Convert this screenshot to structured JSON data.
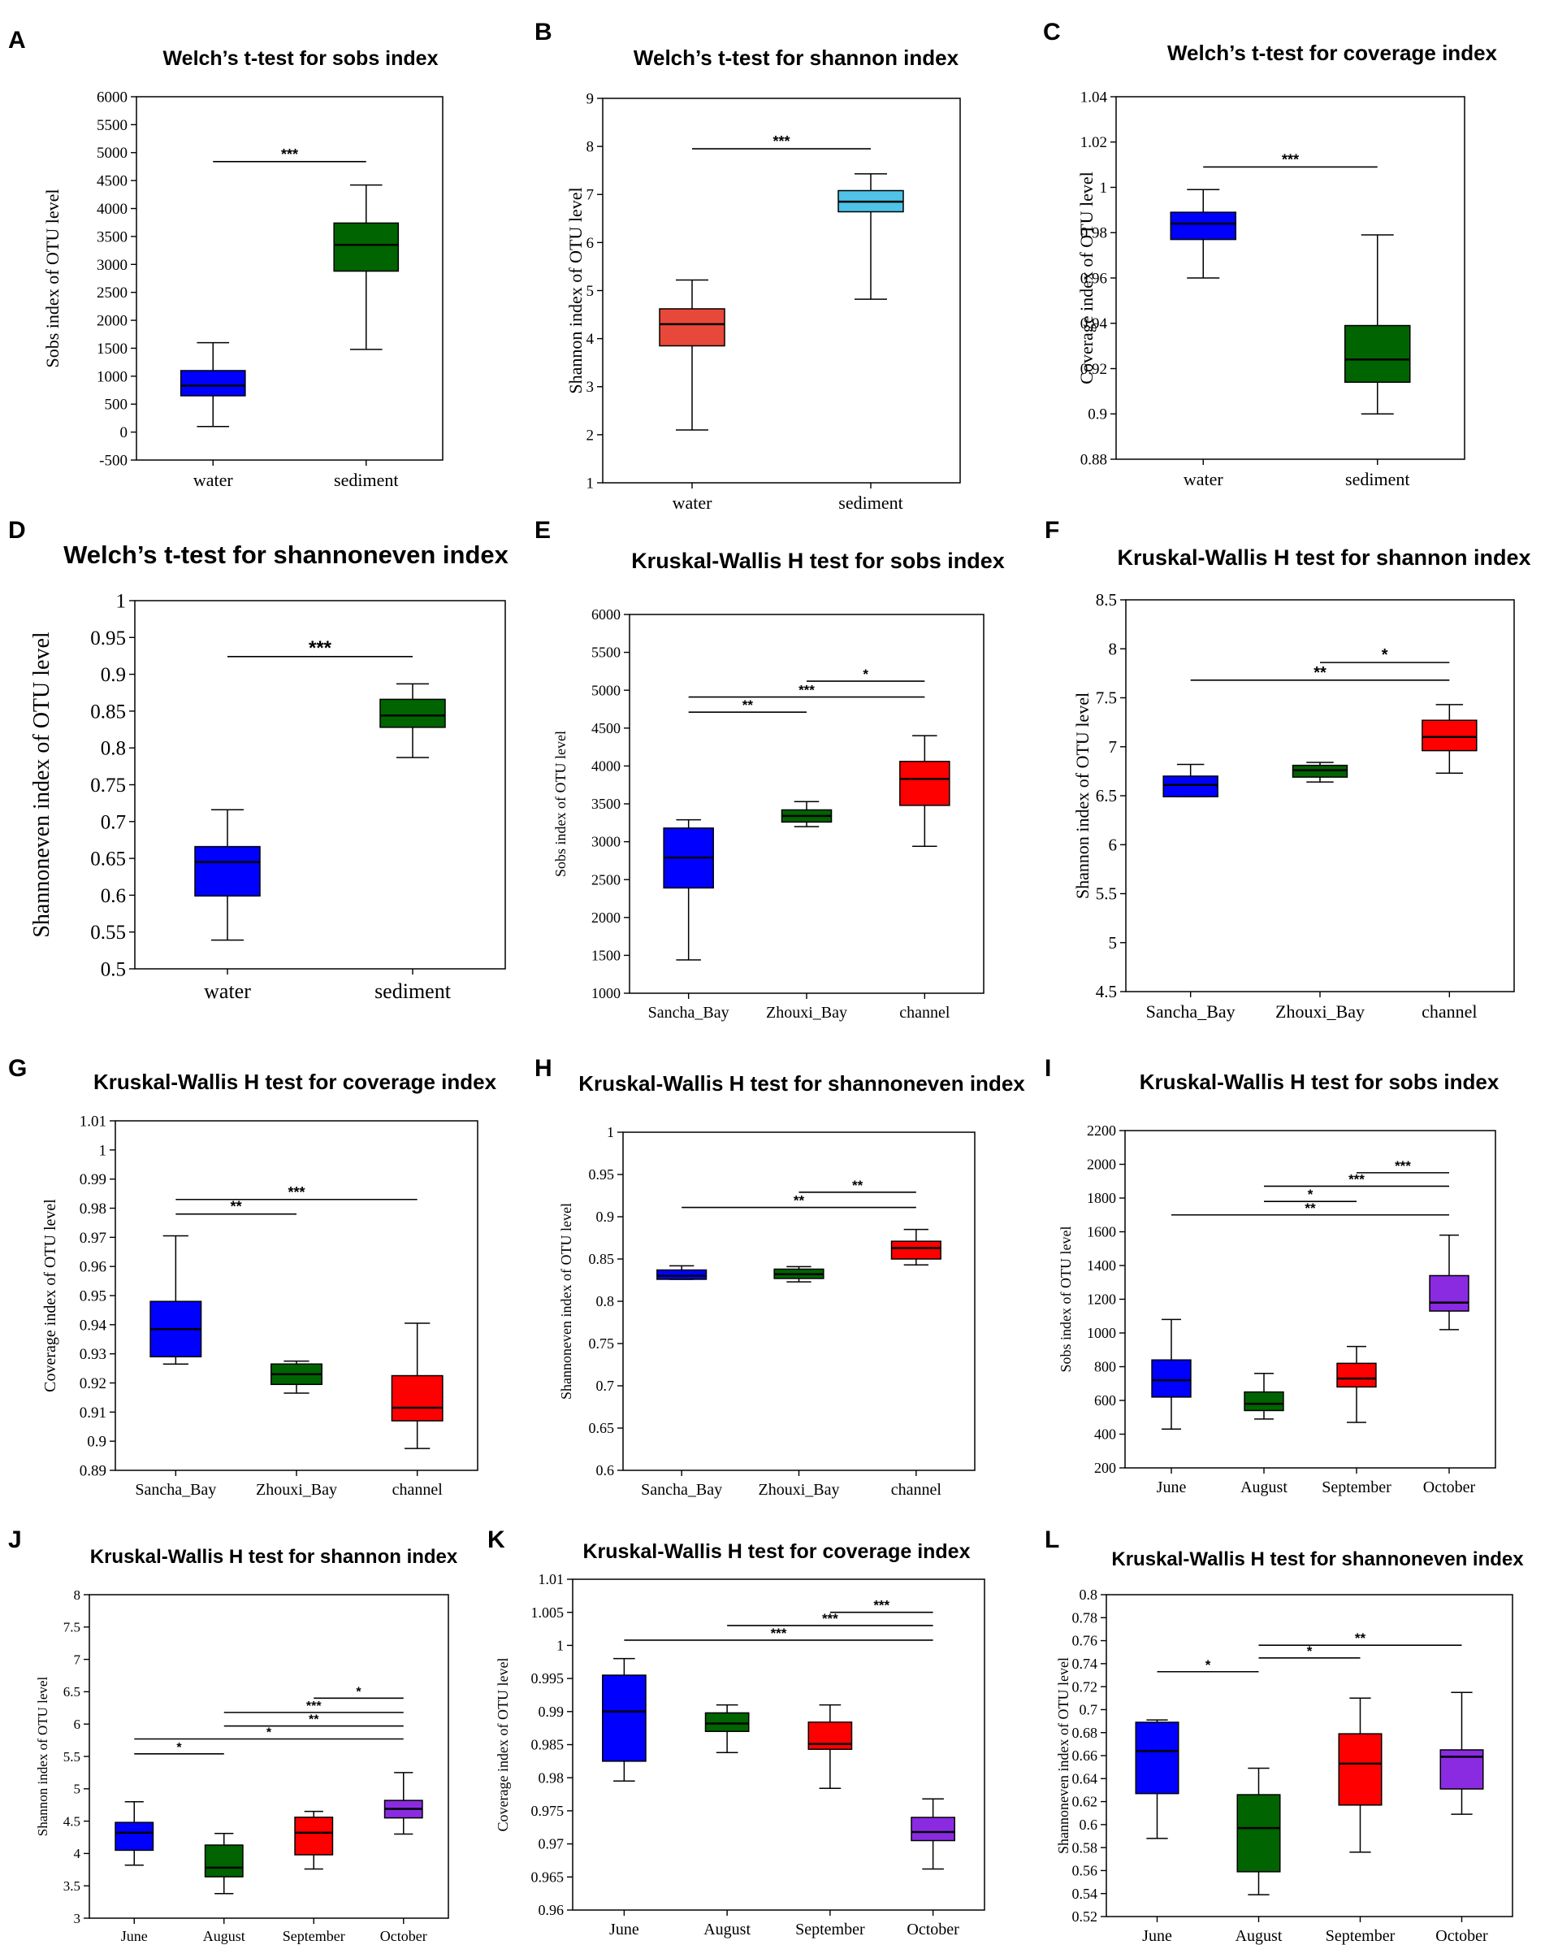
{
  "chart_data": [
    {
      "letter": "A",
      "type": "boxplot",
      "title": "Welch’s t-test for sobs index",
      "ylabel": "Sobs index of OTU level",
      "ylim": [
        -500,
        6000
      ],
      "yticks": [
        -500,
        0,
        500,
        1000,
        1500,
        2000,
        2500,
        3000,
        3500,
        4000,
        4500,
        5000,
        5500,
        6000
      ],
      "categories": [
        "water",
        "sediment"
      ],
      "boxes": [
        {
          "name": "water",
          "min": 100,
          "q1": 650,
          "median": 830,
          "q3": 1100,
          "max": 1600,
          "color": "#0000FF"
        },
        {
          "name": "sediment",
          "min": 1480,
          "q1": 2880,
          "median": 3350,
          "q3": 3740,
          "max": 4420,
          "color": "#006400"
        }
      ],
      "significance": [
        {
          "from": 0,
          "to": 1,
          "y": 4840,
          "label": "***"
        }
      ]
    },
    {
      "letter": "B",
      "type": "boxplot",
      "title": "Welch’s t-test for shannon index",
      "ylabel": "Shannon index of OTU level",
      "ylim": [
        1,
        9
      ],
      "yticks": [
        1,
        2,
        3,
        4,
        5,
        6,
        7,
        8,
        9
      ],
      "categories": [
        "water",
        "sediment"
      ],
      "boxes": [
        {
          "name": "water",
          "min": 2.1,
          "q1": 3.85,
          "median": 4.3,
          "q3": 4.62,
          "max": 5.22,
          "color": "#E8483A"
        },
        {
          "name": "sediment",
          "min": 4.82,
          "q1": 6.64,
          "median": 6.85,
          "q3": 7.08,
          "max": 7.43,
          "color": "#4FC3E8"
        }
      ],
      "significance": [
        {
          "from": 0,
          "to": 1,
          "y": 7.95,
          "label": "***"
        }
      ]
    },
    {
      "letter": "C",
      "type": "boxplot",
      "title": "Welch’s t-test for coverage index",
      "ylabel": "Coverage index of OTU level",
      "ylim": [
        0.88,
        1.04
      ],
      "yticks": [
        0.88,
        0.9,
        0.92,
        0.94,
        0.96,
        0.98,
        1,
        1.02,
        1.04
      ],
      "categories": [
        "water",
        "sediment"
      ],
      "boxes": [
        {
          "name": "water",
          "min": 0.96,
          "q1": 0.977,
          "median": 0.984,
          "q3": 0.989,
          "max": 0.999,
          "color": "#0000FF"
        },
        {
          "name": "sediment",
          "min": 0.9,
          "q1": 0.914,
          "median": 0.924,
          "q3": 0.939,
          "max": 0.979,
          "color": "#006400"
        }
      ],
      "significance": [
        {
          "from": 0,
          "to": 1,
          "y": 1.009,
          "label": "***"
        }
      ]
    },
    {
      "letter": "D",
      "type": "boxplot",
      "title": "Welch’s t-test for shannoneven index",
      "ylabel": "Shannoneven index of OTU level",
      "ylim": [
        0.5,
        1
      ],
      "yticks": [
        0.5,
        0.55,
        0.6,
        0.65,
        0.7,
        0.75,
        0.8,
        0.85,
        0.9,
        0.95,
        1
      ],
      "categories": [
        "water",
        "sediment"
      ],
      "boxes": [
        {
          "name": "water",
          "min": 0.539,
          "q1": 0.599,
          "median": 0.645,
          "q3": 0.666,
          "max": 0.716,
          "color": "#0000FF"
        },
        {
          "name": "sediment",
          "min": 0.787,
          "q1": 0.828,
          "median": 0.844,
          "q3": 0.866,
          "max": 0.887,
          "color": "#006400"
        }
      ],
      "significance": [
        {
          "from": 0,
          "to": 1,
          "y": 0.924,
          "label": "***"
        }
      ]
    },
    {
      "letter": "E",
      "type": "boxplot",
      "title": "Kruskal-Wallis H test for sobs index",
      "ylabel": "Sobs index of OTU level",
      "ylim": [
        1000,
        6000
      ],
      "yticks": [
        1000,
        1500,
        2000,
        2500,
        3000,
        3500,
        4000,
        4500,
        5000,
        5500,
        6000
      ],
      "categories": [
        "Sancha_Bay",
        "Zhouxi_Bay",
        "channel"
      ],
      "boxes": [
        {
          "name": "Sancha_Bay",
          "min": 1440,
          "q1": 2390,
          "median": 2790,
          "q3": 3180,
          "max": 3290,
          "color": "#0000FF"
        },
        {
          "name": "Zhouxi_Bay",
          "min": 3200,
          "q1": 3260,
          "median": 3340,
          "q3": 3420,
          "max": 3530,
          "color": "#006400"
        },
        {
          "name": "channel",
          "min": 2940,
          "q1": 3480,
          "median": 3830,
          "q3": 4060,
          "max": 4400,
          "color": "#FF0000"
        }
      ],
      "significance": [
        {
          "from": 0,
          "to": 1,
          "y": 4710,
          "label": "**"
        },
        {
          "from": 0,
          "to": 2,
          "y": 4910,
          "label": "***"
        },
        {
          "from": 1,
          "to": 2,
          "y": 5120,
          "label": "*"
        }
      ]
    },
    {
      "letter": "F",
      "type": "boxplot",
      "title": "Kruskal-Wallis H test for shannon index",
      "ylabel": "Shannon index of OTU level",
      "ylim": [
        4.5,
        8.5
      ],
      "yticks": [
        4.5,
        5,
        5.5,
        6,
        6.5,
        7,
        7.5,
        8,
        8.5
      ],
      "categories": [
        "Sancha_Bay",
        "Zhouxi_Bay",
        "channel"
      ],
      "boxes": [
        {
          "name": "Sancha_Bay",
          "min": 6.49,
          "q1": 6.49,
          "median": 6.61,
          "q3": 6.7,
          "max": 6.82,
          "color": "#0000FF"
        },
        {
          "name": "Zhouxi_Bay",
          "min": 6.64,
          "q1": 6.69,
          "median": 6.76,
          "q3": 6.81,
          "max": 6.84,
          "color": "#006400"
        },
        {
          "name": "channel",
          "min": 6.73,
          "q1": 6.96,
          "median": 7.1,
          "q3": 7.27,
          "max": 7.43,
          "color": "#FF0000"
        }
      ],
      "significance": [
        {
          "from": 0,
          "to": 2,
          "y": 7.68,
          "label": "**"
        },
        {
          "from": 1,
          "to": 2,
          "y": 7.86,
          "label": "*"
        }
      ]
    },
    {
      "letter": "G",
      "type": "boxplot",
      "title": "Kruskal-Wallis H test for coverage index",
      "ylabel": "Coverage index of OTU level",
      "ylim": [
        0.89,
        1.01
      ],
      "yticks": [
        0.89,
        0.9,
        0.91,
        0.92,
        0.93,
        0.94,
        0.95,
        0.96,
        0.97,
        0.98,
        0.99,
        1,
        1.01
      ],
      "categories": [
        "Sancha_Bay",
        "Zhouxi_Bay",
        "channel"
      ],
      "boxes": [
        {
          "name": "Sancha_Bay",
          "min": 0.9265,
          "q1": 0.929,
          "median": 0.9385,
          "q3": 0.948,
          "max": 0.9705,
          "color": "#0000FF"
        },
        {
          "name": "Zhouxi_Bay",
          "min": 0.9165,
          "q1": 0.9195,
          "median": 0.923,
          "q3": 0.9265,
          "max": 0.9275,
          "color": "#006400"
        },
        {
          "name": "channel",
          "min": 0.8975,
          "q1": 0.907,
          "median": 0.9115,
          "q3": 0.9225,
          "max": 0.9405,
          "color": "#FF0000"
        }
      ],
      "significance": [
        {
          "from": 0,
          "to": 1,
          "y": 0.978,
          "label": "**"
        },
        {
          "from": 0,
          "to": 2,
          "y": 0.983,
          "label": "***"
        }
      ]
    },
    {
      "letter": "H",
      "type": "boxplot",
      "title": "Kruskal-Wallis H test for shannoneven index",
      "ylabel": "Shannoneven index of OTU level",
      "ylim": [
        0.6,
        1
      ],
      "yticks": [
        0.6,
        0.65,
        0.7,
        0.75,
        0.8,
        0.85,
        0.9,
        0.95,
        1
      ],
      "categories": [
        "Sancha_Bay",
        "Zhouxi_Bay",
        "channel"
      ],
      "boxes": [
        {
          "name": "Sancha_Bay",
          "min": 0.826,
          "q1": 0.826,
          "median": 0.83,
          "q3": 0.837,
          "max": 0.842,
          "color": "#0000FF"
        },
        {
          "name": "Zhouxi_Bay",
          "min": 0.823,
          "q1": 0.827,
          "median": 0.832,
          "q3": 0.838,
          "max": 0.841,
          "color": "#006400"
        },
        {
          "name": "channel",
          "min": 0.843,
          "q1": 0.85,
          "median": 0.863,
          "q3": 0.871,
          "max": 0.885,
          "color": "#FF0000"
        }
      ],
      "significance": [
        {
          "from": 0,
          "to": 2,
          "y": 0.911,
          "label": "**"
        },
        {
          "from": 1,
          "to": 2,
          "y": 0.929,
          "label": "**"
        }
      ]
    },
    {
      "letter": "I",
      "type": "boxplot",
      "title": "Kruskal-Wallis H test for sobs index",
      "ylabel": "Sobs index of OTU level",
      "ylim": [
        200,
        2200
      ],
      "yticks": [
        200,
        400,
        600,
        800,
        1000,
        1200,
        1400,
        1600,
        1800,
        2000,
        2200
      ],
      "categories": [
        "June",
        "August",
        "September",
        "October"
      ],
      "boxes": [
        {
          "name": "June",
          "min": 430,
          "q1": 620,
          "median": 720,
          "q3": 840,
          "max": 1080,
          "color": "#0000FF"
        },
        {
          "name": "August",
          "min": 490,
          "q1": 540,
          "median": 580,
          "q3": 650,
          "max": 760,
          "color": "#006400"
        },
        {
          "name": "September",
          "min": 470,
          "q1": 680,
          "median": 730,
          "q3": 820,
          "max": 920,
          "color": "#FF0000"
        },
        {
          "name": "October",
          "min": 1020,
          "q1": 1130,
          "median": 1180,
          "q3": 1340,
          "max": 1580,
          "color": "#8A2BE2"
        }
      ],
      "significance": [
        {
          "from": 0,
          "to": 3,
          "y": 1700,
          "label": "**"
        },
        {
          "from": 1,
          "to": 2,
          "y": 1780,
          "label": "*"
        },
        {
          "from": 1,
          "to": 3,
          "y": 1870,
          "label": "***"
        },
        {
          "from": 2,
          "to": 3,
          "y": 1950,
          "label": "***"
        }
      ]
    },
    {
      "letter": "J",
      "type": "boxplot",
      "title": "Kruskal-Wallis H test for shannon index",
      "ylabel": "Shannon index of OTU level",
      "ylim": [
        3,
        8
      ],
      "yticks": [
        3,
        3.5,
        4,
        4.5,
        5,
        5.5,
        6,
        6.5,
        7,
        7.5,
        8
      ],
      "categories": [
        "June",
        "August",
        "September",
        "October"
      ],
      "boxes": [
        {
          "name": "June",
          "min": 3.82,
          "q1": 4.05,
          "median": 4.32,
          "q3": 4.48,
          "max": 4.8,
          "color": "#0000FF"
        },
        {
          "name": "August",
          "min": 3.38,
          "q1": 3.64,
          "median": 3.78,
          "q3": 4.13,
          "max": 4.31,
          "color": "#006400"
        },
        {
          "name": "September",
          "min": 3.76,
          "q1": 3.98,
          "median": 4.32,
          "q3": 4.56,
          "max": 4.65,
          "color": "#FF0000"
        },
        {
          "name": "October",
          "min": 4.3,
          "q1": 4.55,
          "median": 4.69,
          "q3": 4.82,
          "max": 5.25,
          "color": "#8A2BE2"
        }
      ],
      "significance": [
        {
          "from": 0,
          "to": 1,
          "y": 5.54,
          "label": "*"
        },
        {
          "from": 0,
          "to": 3,
          "y": 5.77,
          "label": "*"
        },
        {
          "from": 1,
          "to": 3,
          "y": 5.97,
          "label": "**"
        },
        {
          "from": 1,
          "to": 3,
          "y": 6.18,
          "label": "***"
        },
        {
          "from": 2,
          "to": 3,
          "y": 6.4,
          "label": "*"
        }
      ]
    },
    {
      "letter": "K",
      "type": "boxplot",
      "title": "Kruskal-Wallis H test for coverage index",
      "ylabel": "Coverage index of OTU level",
      "ylim": [
        0.96,
        1.01
      ],
      "yticks": [
        0.96,
        0.965,
        0.97,
        0.975,
        0.98,
        0.985,
        0.99,
        0.995,
        1,
        1.005,
        1.01
      ],
      "categories": [
        "June",
        "August",
        "September",
        "October"
      ],
      "boxes": [
        {
          "name": "June",
          "min": 0.9795,
          "q1": 0.9825,
          "median": 0.99,
          "q3": 0.9955,
          "max": 0.998,
          "color": "#0000FF"
        },
        {
          "name": "August",
          "min": 0.9838,
          "q1": 0.987,
          "median": 0.9882,
          "q3": 0.9898,
          "max": 0.991,
          "color": "#006400"
        },
        {
          "name": "September",
          "min": 0.9784,
          "q1": 0.9843,
          "median": 0.9851,
          "q3": 0.9884,
          "max": 0.991,
          "color": "#FF0000"
        },
        {
          "name": "October",
          "min": 0.9662,
          "q1": 0.9705,
          "median": 0.9718,
          "q3": 0.974,
          "max": 0.9768,
          "color": "#8A2BE2"
        }
      ],
      "significance": [
        {
          "from": 0,
          "to": 3,
          "y": 1.0008,
          "label": "***"
        },
        {
          "from": 1,
          "to": 3,
          "y": 1.003,
          "label": "***"
        },
        {
          "from": 2,
          "to": 3,
          "y": 1.005,
          "label": "***"
        }
      ]
    },
    {
      "letter": "L",
      "type": "boxplot",
      "title": "Kruskal-Wallis H test for shannoneven index",
      "ylabel": "Shannoneven index of OTU level",
      "ylim": [
        0.52,
        0.8
      ],
      "yticks": [
        0.52,
        0.54,
        0.56,
        0.58,
        0.6,
        0.62,
        0.64,
        0.66,
        0.68,
        0.7,
        0.72,
        0.74,
        0.76,
        0.78,
        0.8
      ],
      "categories": [
        "June",
        "August",
        "September",
        "October"
      ],
      "boxes": [
        {
          "name": "June",
          "min": 0.588,
          "q1": 0.627,
          "median": 0.664,
          "q3": 0.689,
          "max": 0.691,
          "color": "#0000FF"
        },
        {
          "name": "August",
          "min": 0.539,
          "q1": 0.559,
          "median": 0.597,
          "q3": 0.626,
          "max": 0.649,
          "color": "#006400"
        },
        {
          "name": "September",
          "min": 0.576,
          "q1": 0.617,
          "median": 0.653,
          "q3": 0.679,
          "max": 0.71,
          "color": "#FF0000"
        },
        {
          "name": "October",
          "min": 0.609,
          "q1": 0.631,
          "median": 0.659,
          "q3": 0.665,
          "max": 0.715,
          "color": "#8A2BE2"
        }
      ],
      "significance": [
        {
          "from": 0,
          "to": 1,
          "y": 0.733,
          "label": "*"
        },
        {
          "from": 1,
          "to": 2,
          "y": 0.745,
          "label": "*"
        },
        {
          "from": 1,
          "to": 3,
          "y": 0.756,
          "label": "**"
        }
      ]
    }
  ]
}
